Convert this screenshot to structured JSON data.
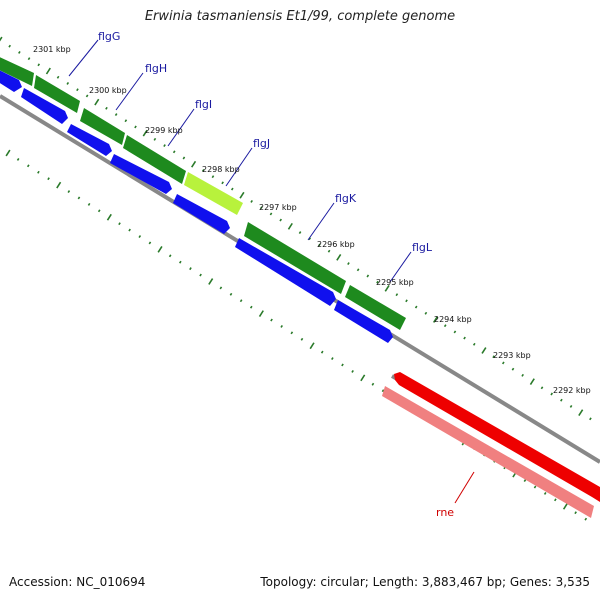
{
  "title": "Erwinia tasmaniensis Et1/99, complete genome",
  "footer": {
    "accession": "Accession: NC_010694",
    "summary": "Topology: circular; Length: 3,883,467 bp; Genes: 3,535"
  },
  "colors": {
    "cds_dark": "#1e8a1e",
    "cds_highlight": "#b8f23c",
    "gene_blue": "#1010ee",
    "rne_red": "#ee0000",
    "rne_pink": "#f08080",
    "backbone": "#888888",
    "gene_label": "#1a1aa0",
    "rne_label": "#d00000",
    "tick": "#2a7a2a"
  },
  "kbp_labels": [
    "2301 kbp",
    "2300 kbp",
    "2299 kbp",
    "2298 kbp",
    "2297 kbp",
    "2296 kbp",
    "2295 kbp",
    "2294 kbp",
    "2293 kbp",
    "2292 kbp"
  ],
  "genes": [
    {
      "name": "flgG"
    },
    {
      "name": "flgH"
    },
    {
      "name": "flgI"
    },
    {
      "name": "flgJ"
    },
    {
      "name": "flgK"
    },
    {
      "name": "flgL"
    },
    {
      "name": "rne"
    }
  ]
}
